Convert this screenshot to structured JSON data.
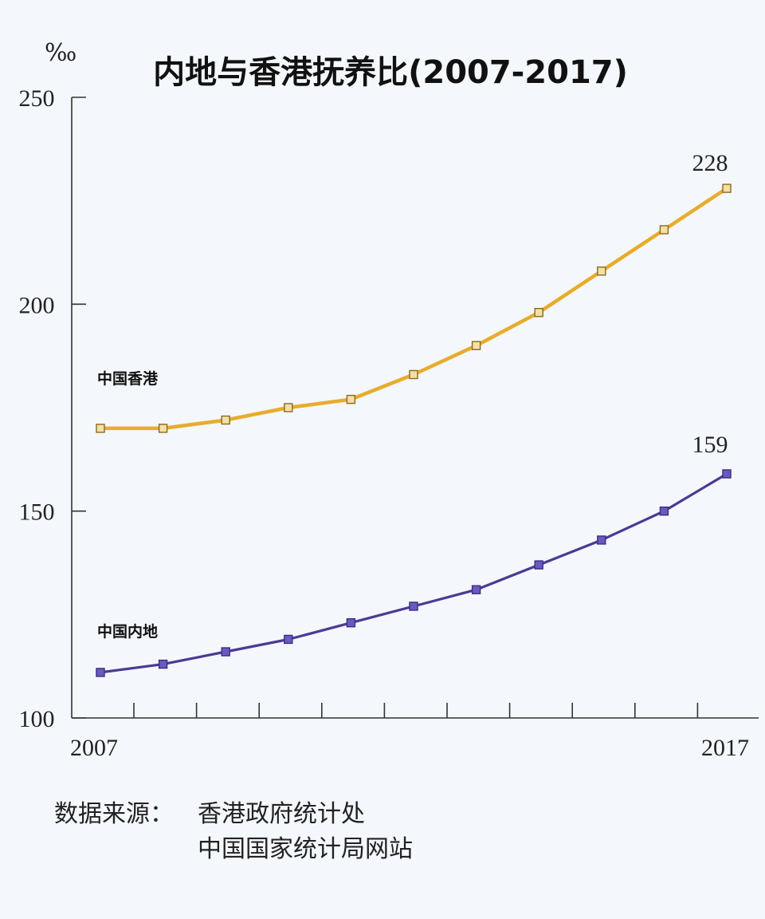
{
  "chart_data": {
    "type": "line",
    "title": "内地与香港抚养比(2007-2017)",
    "unit": "‰",
    "x": [
      2007,
      2008,
      2009,
      2010,
      2011,
      2012,
      2013,
      2014,
      2015,
      2016,
      2017
    ],
    "x_tick_labels": [
      "2007",
      "2017"
    ],
    "yticks": [
      "250",
      "200",
      "150",
      "100"
    ],
    "ylim": [
      100,
      250
    ],
    "grid": false,
    "legend": "inline labels at left of each line",
    "series": [
      {
        "name": "中国香港",
        "color": "#e8ac2c",
        "marker_color": "#c49a3a",
        "values": [
          170,
          170,
          172,
          175,
          177,
          183,
          190,
          198,
          208,
          218,
          228
        ],
        "end_label": "228"
      },
      {
        "name": "中国内地",
        "color": "#4b3a94",
        "marker_color": "#6a5ac0",
        "values": [
          111,
          113,
          116,
          119,
          123,
          127,
          131,
          137,
          143,
          150,
          159
        ],
        "end_label": "159"
      }
    ]
  },
  "source": {
    "label": "数据来源：",
    "lines": [
      "香港政府统计处",
      "中国国家统计局网站"
    ]
  }
}
